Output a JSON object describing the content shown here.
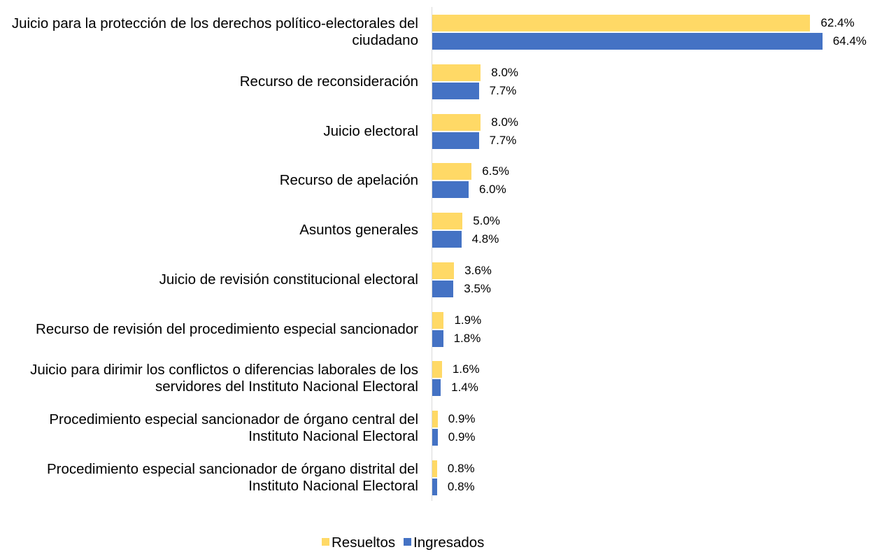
{
  "chart_data": {
    "type": "bar",
    "orientation": "horizontal",
    "categories": [
      "Juicio para la protección de los derechos político-electorales del ciudadano",
      "Recurso de reconsideración",
      "Juicio electoral",
      "Recurso de apelación",
      "Asuntos generales",
      "Juicio de revisión constitucional electoral",
      "Recurso de revisión del procedimiento especial sancionador",
      "Juicio para dirimir los conflictos o diferencias laborales de los servidores del Instituto Nacional Electoral",
      "Procedimiento especial sancionador de órgano central del Instituto Nacional Electoral",
      "Procedimiento especial sancionador de órgano distrital del Instituto Nacional Electoral"
    ],
    "series": [
      {
        "name": "Resueltos",
        "color": "#FFD966",
        "values": [
          62.4,
          8.0,
          8.0,
          6.5,
          5.0,
          3.6,
          1.9,
          1.6,
          0.9,
          0.8
        ],
        "value_labels": [
          "62.4%",
          "8.0%",
          "8.0%",
          "6.5%",
          "5.0%",
          "3.6%",
          "1.9%",
          "1.6%",
          "0.9%",
          "0.8%"
        ]
      },
      {
        "name": "Ingresados",
        "color": "#4472C4",
        "values": [
          64.4,
          7.7,
          7.7,
          6.0,
          4.8,
          3.5,
          1.8,
          1.4,
          0.9,
          0.8
        ],
        "value_labels": [
          "64.4%",
          "7.7%",
          "7.7%",
          "6.0%",
          "4.8%",
          "3.5%",
          "1.8%",
          "1.4%",
          "0.9%",
          "0.8%"
        ]
      }
    ],
    "legend": "bottom"
  }
}
